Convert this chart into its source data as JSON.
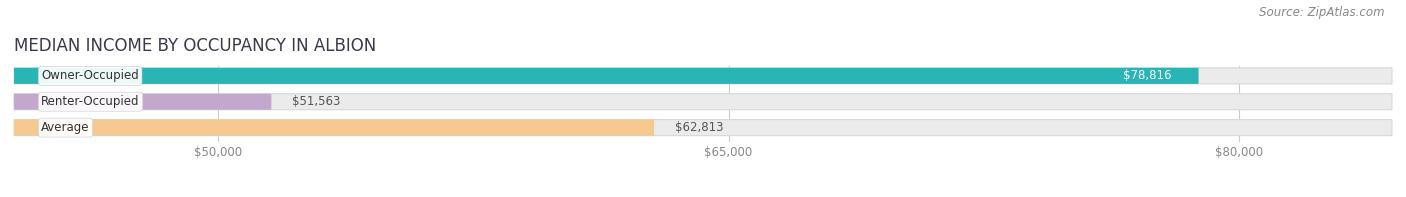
{
  "title": "MEDIAN INCOME BY OCCUPANCY IN ALBION",
  "source": "Source: ZipAtlas.com",
  "categories": [
    "Owner-Occupied",
    "Renter-Occupied",
    "Average"
  ],
  "values": [
    78816,
    51563,
    62813
  ],
  "value_labels": [
    "$78,816",
    "$51,563",
    "$62,813"
  ],
  "bar_colors": [
    "#29b5b5",
    "#c2a8cc",
    "#f5c990"
  ],
  "xlim_min": 44000,
  "xlim_max": 84500,
  "xticks": [
    50000,
    65000,
    80000
  ],
  "xtick_labels": [
    "$50,000",
    "$65,000",
    "$80,000"
  ],
  "background_color": "#ffffff",
  "bar_bg_color": "#ebebeb",
  "bar_bg_edge_color": "#d8d8d8",
  "title_fontsize": 12,
  "label_fontsize": 8.5,
  "value_fontsize": 8.5,
  "source_fontsize": 8.5,
  "title_color": "#3a3a4a",
  "source_color": "#888888",
  "tick_color": "#888888",
  "grid_color": "#cccccc"
}
